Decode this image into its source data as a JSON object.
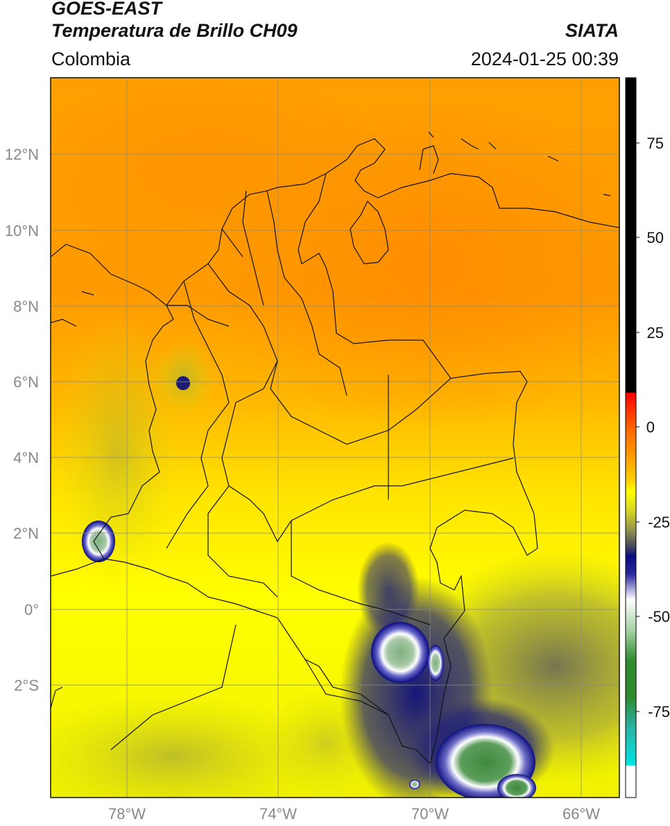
{
  "header": {
    "satellite": "GOES-EAST",
    "product": "Temperatura de Brillo CH09",
    "region": "Colombia",
    "organization": "SIATA",
    "timestamp": "2024-01-25 00:39"
  },
  "map": {
    "lat_ticks": [
      "12°N",
      "10°N",
      "8°N",
      "6°N",
      "4°N",
      "2°N",
      "0°",
      "2°S"
    ],
    "lon_ticks": [
      "78°W",
      "74°W",
      "70°W",
      "66°W"
    ],
    "extent": {
      "lon_min": -80,
      "lon_max": -65,
      "lat_min": -5,
      "lat_max": 14
    }
  },
  "colorbar": {
    "ticks": [
      "75",
      "50",
      "25",
      "0",
      "-25",
      "-50",
      "-75"
    ],
    "range": [
      -100,
      90
    ],
    "colors": {
      "black": "#000000",
      "red": "#ff1a00",
      "orange": "#ff9900",
      "yellow": "#ffff00",
      "olive": "#8f8f50",
      "navy": "#0a0a80",
      "white": "#ffffff",
      "green": "#2d8a2d",
      "cyan": "#00e5e5"
    }
  }
}
